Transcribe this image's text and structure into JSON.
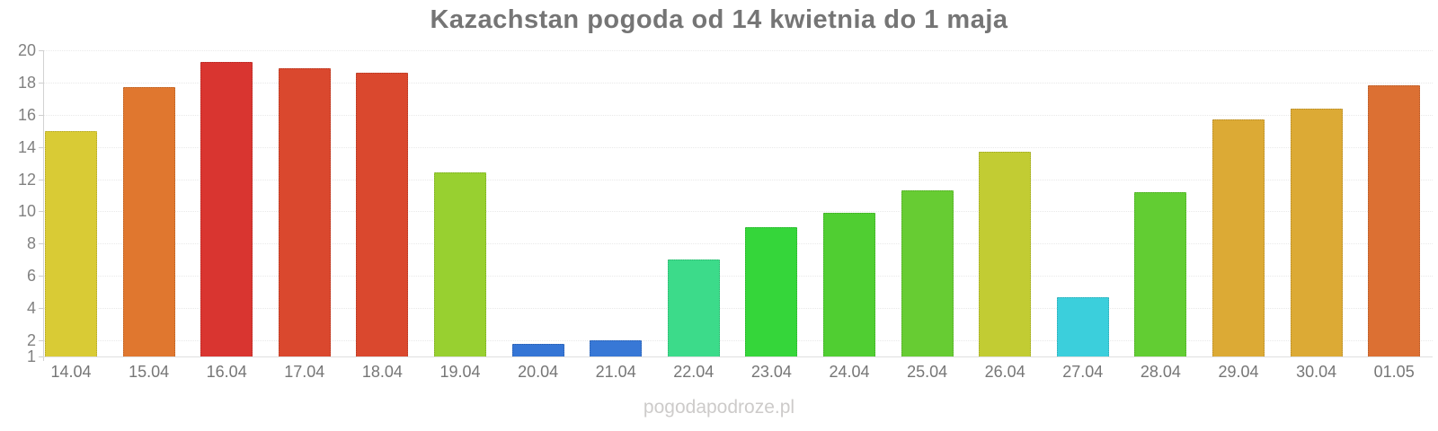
{
  "title": "Kazachstan pogoda od 14 kwietnia do 1 maja",
  "watermark": "pogodapodroze.pl",
  "colors": {
    "background": "#ffffff",
    "title_text": "#757575",
    "axis_text": "#818181",
    "x_label_text": "#767676",
    "grid_line": "#e9e9e9",
    "axis_line": "#d2d2d2",
    "watermark_text": "#cdcbca"
  },
  "chart_data": {
    "type": "bar",
    "title": "Kazachstan pogoda od 14 kwietnia do 1 maja",
    "xlabel": "",
    "ylabel": "",
    "ylim": [
      1,
      20
    ],
    "yticks": [
      1,
      2,
      4,
      6,
      8,
      10,
      12,
      14,
      16,
      18,
      20
    ],
    "grid": "horizontal-dotted",
    "legend": "none",
    "categories": [
      "14.04",
      "15.04",
      "16.04",
      "17.04",
      "18.04",
      "19.04",
      "20.04",
      "21.04",
      "22.04",
      "23.04",
      "24.04",
      "25.04",
      "26.04",
      "27.04",
      "28.04",
      "29.04",
      "30.04",
      "01.05"
    ],
    "values": [
      15.0,
      17.7,
      19.3,
      18.9,
      18.6,
      12.4,
      1.8,
      2.0,
      7.0,
      9.0,
      9.9,
      11.3,
      13.7,
      4.7,
      11.2,
      15.7,
      16.4,
      17.8
    ],
    "bar_colors": [
      "#d9cb35",
      "#e0772f",
      "#d93530",
      "#da482e",
      "#da482e",
      "#98d030",
      "#3575d5",
      "#3878d6",
      "#3cdb8a",
      "#35d63a",
      "#50ce32",
      "#67cc33",
      "#c2cc33",
      "#3bcfdc",
      "#62cd33",
      "#dcaa35",
      "#dcaa35",
      "#dc7033"
    ]
  }
}
